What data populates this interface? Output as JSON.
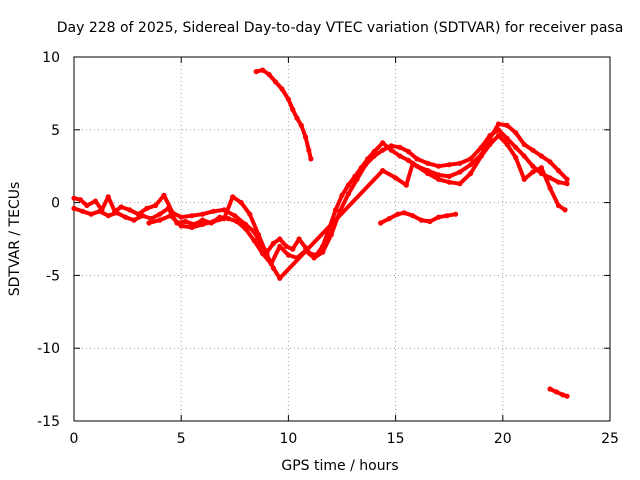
{
  "chart_data": {
    "type": "scatter",
    "title": "Day 228 of 2025, Sidereal Day-to-day VTEC variation (SDTVAR) for receiver pasa",
    "xlabel": "GPS time / hours",
    "ylabel": "SDTVAR / TECUs",
    "xlim": [
      0,
      25
    ],
    "ylim": [
      -15,
      10
    ],
    "xticks": [
      0,
      5,
      10,
      15,
      20,
      25
    ],
    "yticks": [
      -15,
      -10,
      -5,
      0,
      5,
      10
    ],
    "grid": true,
    "series": [
      {
        "name": "main-band-a",
        "color": "#ff0000",
        "points": [
          [
            0.0,
            0.3
          ],
          [
            0.3,
            0.2
          ],
          [
            0.6,
            -0.2
          ],
          [
            1.0,
            0.1
          ],
          [
            1.3,
            -0.5
          ],
          [
            1.6,
            0.4
          ],
          [
            1.9,
            -0.6
          ],
          [
            2.2,
            -0.3
          ],
          [
            2.6,
            -0.5
          ],
          [
            3.0,
            -0.8
          ],
          [
            3.4,
            -0.4
          ],
          [
            3.8,
            -0.2
          ],
          [
            4.2,
            0.5
          ],
          [
            4.6,
            -0.7
          ],
          [
            5.0,
            -1.0
          ],
          [
            5.5,
            -0.9
          ],
          [
            6.0,
            -0.8
          ],
          [
            6.5,
            -0.6
          ],
          [
            7.0,
            -0.5
          ],
          [
            7.5,
            -0.9
          ],
          [
            8.0,
            -1.5
          ],
          [
            8.4,
            -2.0
          ],
          [
            8.7,
            -2.8
          ],
          [
            9.0,
            -3.4
          ],
          [
            9.3,
            -2.8
          ],
          [
            9.6,
            -2.5
          ],
          [
            9.9,
            -3.0
          ],
          [
            10.2,
            -3.2
          ],
          [
            10.5,
            -2.5
          ],
          [
            10.8,
            -3.1
          ],
          [
            11.0,
            -3.5
          ],
          [
            11.3,
            -3.6
          ],
          [
            11.6,
            -3.0
          ],
          [
            11.9,
            -1.8
          ],
          [
            12.2,
            -0.5
          ],
          [
            12.5,
            0.5
          ],
          [
            12.8,
            1.2
          ],
          [
            13.1,
            1.8
          ],
          [
            13.4,
            2.4
          ],
          [
            13.7,
            3.0
          ],
          [
            14.0,
            3.5
          ],
          [
            14.4,
            4.1
          ],
          [
            14.8,
            3.6
          ],
          [
            15.2,
            3.2
          ],
          [
            15.6,
            2.9
          ],
          [
            16.0,
            2.5
          ],
          [
            16.5,
            2.2
          ],
          [
            17.0,
            1.9
          ],
          [
            17.5,
            1.8
          ],
          [
            18.0,
            2.1
          ],
          [
            18.5,
            2.6
          ],
          [
            19.0,
            3.3
          ],
          [
            19.4,
            4.4
          ],
          [
            19.8,
            5.4
          ],
          [
            20.2,
            5.3
          ],
          [
            20.6,
            4.8
          ],
          [
            21.0,
            4.0
          ],
          [
            21.4,
            3.6
          ],
          [
            21.8,
            3.2
          ],
          [
            22.2,
            2.8
          ],
          [
            22.6,
            2.2
          ],
          [
            23.0,
            1.6
          ]
        ]
      },
      {
        "name": "main-band-b",
        "color": "#ff0000",
        "points": [
          [
            0.0,
            -0.4
          ],
          [
            0.4,
            -0.6
          ],
          [
            0.8,
            -0.8
          ],
          [
            1.2,
            -0.6
          ],
          [
            1.6,
            -0.9
          ],
          [
            2.0,
            -0.7
          ],
          [
            2.4,
            -1.0
          ],
          [
            2.8,
            -1.2
          ],
          [
            3.2,
            -0.9
          ],
          [
            3.6,
            -1.1
          ],
          [
            4.0,
            -0.8
          ],
          [
            4.4,
            -0.4
          ],
          [
            4.8,
            -1.4
          ],
          [
            5.2,
            -1.3
          ],
          [
            5.6,
            -1.5
          ],
          [
            6.0,
            -1.2
          ],
          [
            6.4,
            -1.4
          ],
          [
            6.8,
            -1.0
          ],
          [
            7.2,
            -1.1
          ],
          [
            7.6,
            -1.3
          ],
          [
            8.0,
            -1.8
          ],
          [
            8.4,
            -2.6
          ],
          [
            8.8,
            -3.5
          ],
          [
            9.2,
            -4.2
          ],
          [
            9.6,
            -3.0
          ],
          [
            10.0,
            -3.6
          ],
          [
            10.4,
            -3.8
          ],
          [
            10.8,
            -3.3
          ],
          [
            11.2,
            -3.8
          ],
          [
            11.6,
            -3.4
          ],
          [
            12.0,
            -2.2
          ],
          [
            12.4,
            -0.6
          ],
          [
            12.8,
            0.6
          ],
          [
            13.2,
            1.6
          ],
          [
            13.6,
            2.6
          ],
          [
            14.0,
            3.2
          ],
          [
            14.4,
            3.6
          ],
          [
            14.8,
            3.9
          ],
          [
            15.2,
            3.8
          ],
          [
            15.6,
            3.5
          ],
          [
            16.0,
            3.0
          ],
          [
            16.5,
            2.7
          ],
          [
            17.0,
            2.5
          ],
          [
            17.5,
            2.6
          ],
          [
            18.0,
            2.7
          ],
          [
            18.5,
            3.0
          ],
          [
            19.0,
            3.8
          ],
          [
            19.4,
            4.6
          ],
          [
            19.8,
            5.0
          ],
          [
            20.2,
            4.4
          ],
          [
            20.6,
            3.8
          ],
          [
            21.0,
            3.2
          ],
          [
            21.4,
            2.5
          ],
          [
            21.8,
            2.0
          ],
          [
            22.2,
            1.7
          ],
          [
            22.6,
            1.4
          ],
          [
            23.0,
            1.3
          ]
        ]
      },
      {
        "name": "main-band-c",
        "color": "#ff0000",
        "points": [
          [
            3.5,
            -1.4
          ],
          [
            4.0,
            -1.2
          ],
          [
            4.5,
            -0.9
          ],
          [
            5.0,
            -1.6
          ],
          [
            5.5,
            -1.7
          ],
          [
            6.0,
            -1.5
          ],
          [
            6.5,
            -1.3
          ],
          [
            7.0,
            -1.1
          ],
          [
            7.4,
            0.4
          ],
          [
            7.8,
            0.0
          ],
          [
            8.2,
            -0.8
          ],
          [
            8.6,
            -2.2
          ],
          [
            9.0,
            -3.6
          ],
          [
            9.3,
            -4.5
          ],
          [
            9.6,
            -5.2
          ],
          [
            14.4,
            2.2
          ],
          [
            15.0,
            1.7
          ],
          [
            15.5,
            1.2
          ],
          [
            15.8,
            2.7
          ],
          [
            16.5,
            2.0
          ],
          [
            17.0,
            1.6
          ],
          [
            17.5,
            1.4
          ],
          [
            18.0,
            1.3
          ],
          [
            18.5,
            2.0
          ],
          [
            19.0,
            3.2
          ],
          [
            19.4,
            4.0
          ],
          [
            19.8,
            4.6
          ],
          [
            20.2,
            4.0
          ],
          [
            20.6,
            3.1
          ],
          [
            21.0,
            1.6
          ],
          [
            21.4,
            2.1
          ],
          [
            21.8,
            2.4
          ],
          [
            22.2,
            1.0
          ],
          [
            22.6,
            -0.2
          ],
          [
            22.9,
            -0.5
          ]
        ]
      },
      {
        "name": "upper-arc",
        "color": "#ff0000",
        "points": [
          [
            8.5,
            9.0
          ],
          [
            8.8,
            9.1
          ],
          [
            9.1,
            8.8
          ],
          [
            9.4,
            8.3
          ],
          [
            9.7,
            7.8
          ],
          [
            10.0,
            7.1
          ],
          [
            10.2,
            6.4
          ],
          [
            10.4,
            5.8
          ],
          [
            10.6,
            5.3
          ],
          [
            10.8,
            4.5
          ],
          [
            10.95,
            3.6
          ],
          [
            11.05,
            3.0
          ]
        ]
      },
      {
        "name": "lower-segment",
        "color": "#ff0000",
        "points": [
          [
            14.3,
            -1.4
          ],
          [
            14.7,
            -1.1
          ],
          [
            15.1,
            -0.8
          ],
          [
            15.4,
            -0.7
          ],
          [
            15.8,
            -0.9
          ],
          [
            16.2,
            -1.2
          ],
          [
            16.6,
            -1.3
          ],
          [
            17.0,
            -1.0
          ],
          [
            17.4,
            -0.9
          ],
          [
            17.8,
            -0.8
          ]
        ]
      },
      {
        "name": "bottom-outlier",
        "color": "#ff0000",
        "points": [
          [
            22.2,
            -12.8
          ],
          [
            22.5,
            -13.0
          ],
          [
            22.8,
            -13.2
          ],
          [
            23.0,
            -13.3
          ]
        ]
      }
    ]
  }
}
